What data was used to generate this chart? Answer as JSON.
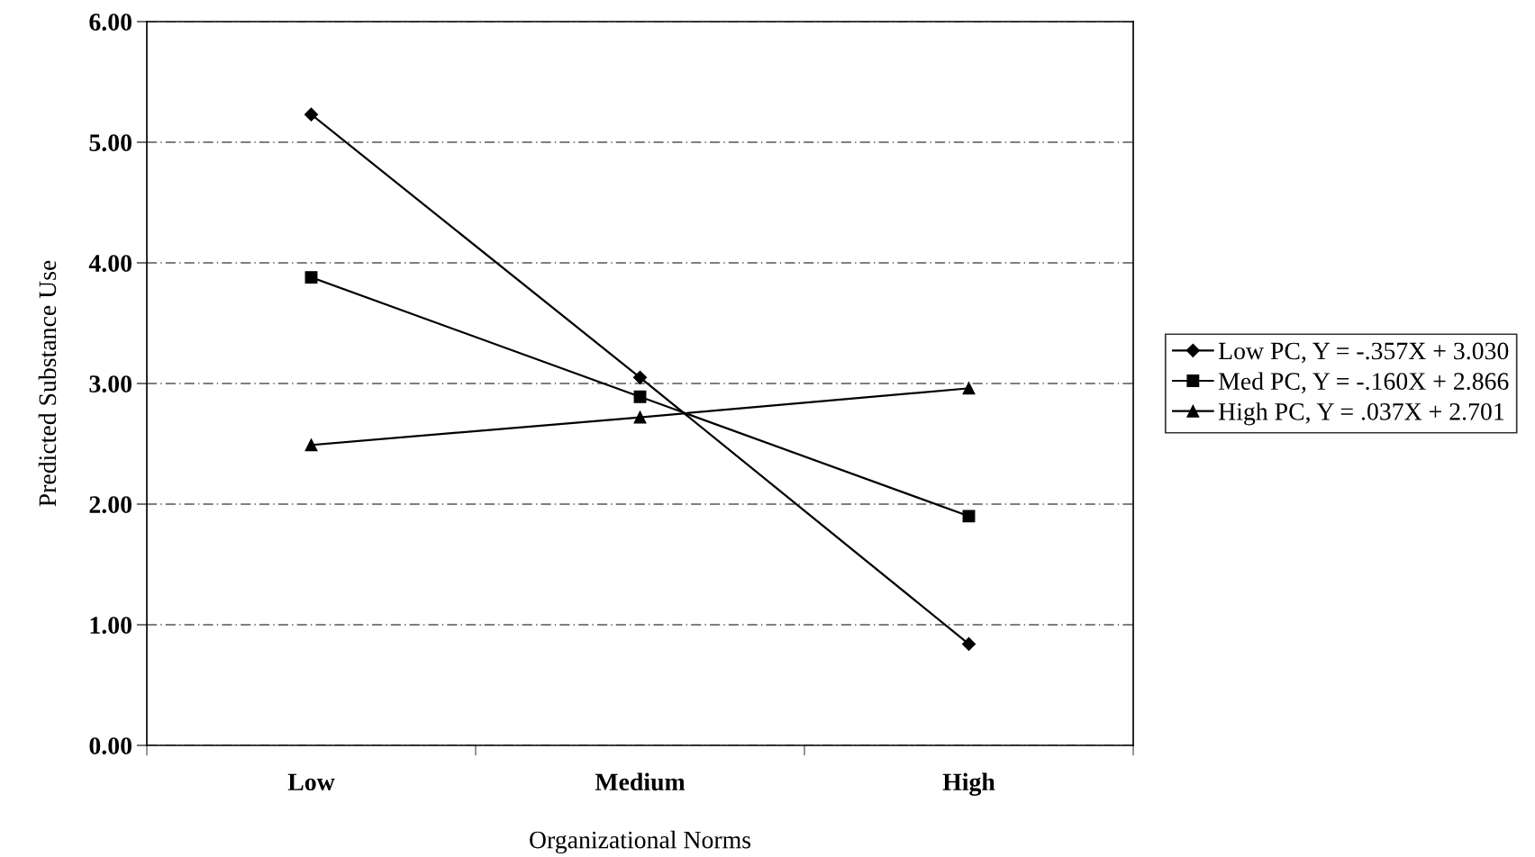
{
  "chart_data": {
    "type": "line",
    "xlabel": "Organizational Norms",
    "ylabel": "Predicted Substance Use",
    "categories": [
      "Low",
      "Medium",
      "High"
    ],
    "series": [
      {
        "name": "Low PC, Y = -.357X + 3.030",
        "color": "#000000",
        "marker": "diamond",
        "values": [
          5.23,
          3.05,
          0.84
        ]
      },
      {
        "name": "Med PC, Y = -.160X + 2.866",
        "color": "#000000",
        "marker": "square",
        "values": [
          3.88,
          2.89,
          1.9
        ]
      },
      {
        "name": "High PC, Y = .037X + 2.701",
        "color": "#000000",
        "marker": "triangle",
        "values": [
          2.49,
          2.72,
          2.96
        ]
      }
    ],
    "ylim": [
      0,
      6
    ],
    "yticks": [
      {
        "value": 0,
        "label": "0.00"
      },
      {
        "value": 1,
        "label": "1.00"
      },
      {
        "value": 2,
        "label": "2.00"
      },
      {
        "value": 3,
        "label": "3.00"
      },
      {
        "value": 4,
        "label": "4.00"
      },
      {
        "value": 5,
        "label": "5.00"
      },
      {
        "value": 6,
        "label": "6.00"
      }
    ],
    "grid": "y",
    "legend": "right",
    "line_style": "solid"
  }
}
